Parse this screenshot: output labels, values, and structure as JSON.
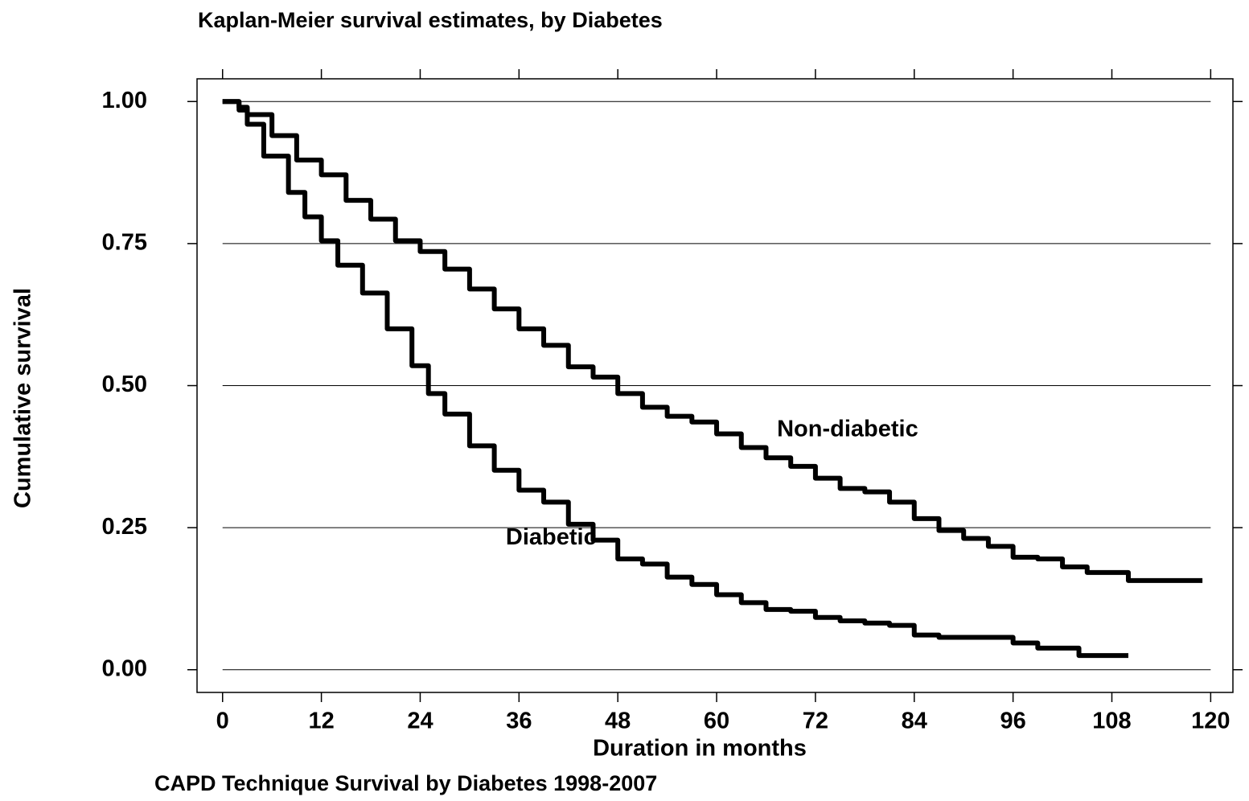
{
  "chart_data": {
    "type": "line",
    "step": true,
    "title": "Kaplan-Meier survival estimates, by Diabetes",
    "caption": "CAPD Technique Survival by Diabetes 1998-2007",
    "x_label": "Duration in months",
    "y_label": "Cumulative survival",
    "xlim": [
      -3.1,
      122.7
    ],
    "ylim": [
      -0.04,
      1.04
    ],
    "xticks": [
      0,
      12,
      24,
      36,
      48,
      60,
      72,
      84,
      96,
      108,
      120
    ],
    "yticks": [
      {
        "value": 0,
        "label": "0.00"
      },
      {
        "value": 0.25,
        "label": "0.25"
      },
      {
        "value": 0.5,
        "label": "0.50"
      },
      {
        "value": 0.75,
        "label": "0.75"
      },
      {
        "value": 1,
        "label": "1.00"
      }
    ],
    "grid": true,
    "series": [
      {
        "name": "Non-diabetic",
        "color": "#000000",
        "x": [
          0,
          2,
          3,
          6,
          9,
          12,
          15,
          18,
          21,
          24,
          27,
          30,
          33,
          36,
          39,
          42,
          45,
          48,
          51,
          54,
          57,
          60,
          63,
          66,
          69,
          72,
          75,
          78,
          81,
          84,
          87,
          90,
          93,
          96,
          99,
          102,
          105,
          108,
          110,
          119
        ],
        "values": [
          1.0,
          0.99,
          0.977,
          0.94,
          0.897,
          0.871,
          0.826,
          0.793,
          0.755,
          0.736,
          0.705,
          0.67,
          0.635,
          0.6,
          0.571,
          0.533,
          0.515,
          0.486,
          0.462,
          0.446,
          0.436,
          0.415,
          0.391,
          0.373,
          0.358,
          0.337,
          0.319,
          0.313,
          0.295,
          0.266,
          0.245,
          0.231,
          0.217,
          0.198,
          0.195,
          0.181,
          0.171,
          0.171,
          0.157,
          0.157
        ]
      },
      {
        "name": "Diabetic",
        "color": "#000000",
        "x": [
          0,
          2,
          3,
          5,
          8,
          10,
          12,
          14,
          17,
          20,
          23,
          25,
          27,
          30,
          33,
          36,
          39,
          42,
          45,
          48,
          51,
          54,
          57,
          60,
          63,
          66,
          69,
          72,
          75,
          78,
          81,
          84,
          87,
          93,
          96,
          99,
          104,
          110
        ],
        "values": [
          1.0,
          0.985,
          0.96,
          0.904,
          0.84,
          0.797,
          0.755,
          0.712,
          0.663,
          0.6,
          0.535,
          0.486,
          0.45,
          0.394,
          0.351,
          0.316,
          0.295,
          0.256,
          0.228,
          0.195,
          0.186,
          0.163,
          0.15,
          0.132,
          0.118,
          0.106,
          0.103,
          0.092,
          0.086,
          0.082,
          0.078,
          0.061,
          0.057,
          0.057,
          0.047,
          0.038,
          0.025,
          0.025
        ]
      }
    ]
  }
}
